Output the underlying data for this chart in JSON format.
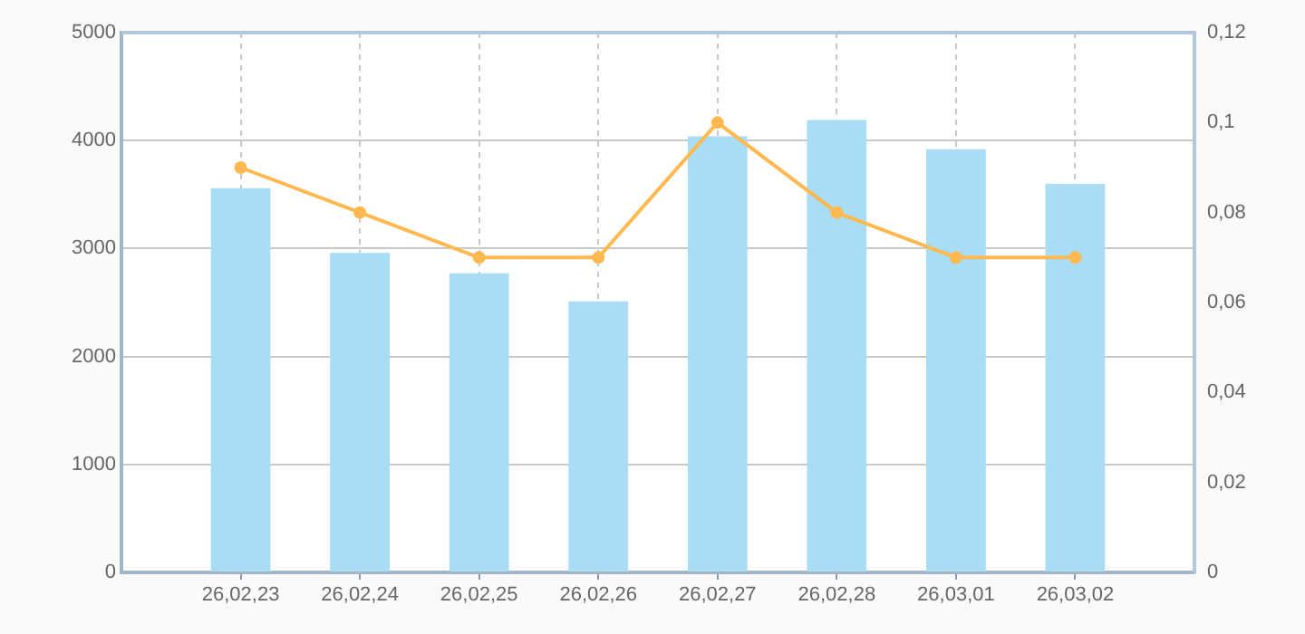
{
  "chart_data": {
    "type": "bar",
    "categories": [
      "26,02,23",
      "26,02,24",
      "26,02,25",
      "26,02,26",
      "26,02,27",
      "26,02,28",
      "26,03,01",
      "26,03,02"
    ],
    "series": [
      {
        "color": "#a9dcf5",
        "values": [
          3560,
          2960,
          2770,
          2510,
          4040,
          4190,
          3920,
          3600
        ]
      },
      {
        "type": "line",
        "axis": "y2",
        "color": "#ffb94f",
        "values": [
          0.09,
          0.08,
          0.07,
          0.07,
          0.1,
          0.08,
          0.07,
          0.07
        ]
      }
    ],
    "ylim": [
      0,
      5000
    ],
    "yticks": [
      0,
      1000,
      2000,
      3000,
      4000,
      5000
    ],
    "y2lim": [
      0,
      0.12
    ],
    "y2ticks": [
      {
        "value": 0,
        "label": "0"
      },
      {
        "value": 0.02,
        "label": "0,02"
      },
      {
        "value": 0.04,
        "label": "0,04"
      },
      {
        "value": 0.06,
        "label": "0,06"
      },
      {
        "value": 0.08,
        "label": "0,08"
      },
      {
        "value": 0.1,
        "label": "0,1"
      },
      {
        "value": 0.12,
        "label": "0,12"
      }
    ],
    "grid": true,
    "marker": "circle"
  }
}
